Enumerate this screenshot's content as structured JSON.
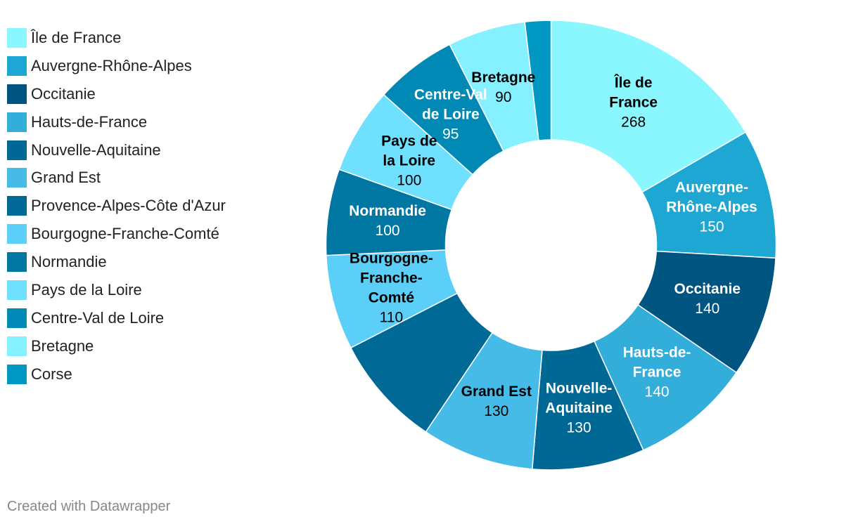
{
  "chart_data": {
    "type": "pie",
    "categories": [
      "Île de France",
      "Auvergne-Rhône-Alpes",
      "Occitanie",
      "Hauts-de-France",
      "Nouvelle-Aquitaine",
      "Grand Est",
      "Provence-Alpes-Côte d'Azur",
      "Bourgogne-Franche-Comté",
      "Normandie",
      "Pays de la Loire",
      "Centre-Val de Loire",
      "Bretagne",
      "Corse"
    ],
    "values": [
      268,
      150,
      140,
      140,
      130,
      130,
      130,
      110,
      100,
      100,
      95,
      90,
      30
    ],
    "display_values": [
      "268",
      "150",
      "140",
      "140",
      "130",
      "130",
      "",
      "110",
      "100",
      "100",
      "95",
      "90",
      ""
    ],
    "slice_labels": [
      [
        "Île de",
        "France"
      ],
      [
        "Auvergne-",
        "Rhône-Alpes"
      ],
      [
        "Occitanie"
      ],
      [
        "Hauts-de-",
        "France"
      ],
      [
        "Nouvelle-",
        "Aquitaine"
      ],
      [
        "Grand Est"
      ],
      [],
      [
        "Bourgogne-",
        "Franche-",
        "Comté"
      ],
      [
        "Normandie"
      ],
      [
        "Pays de",
        "la Loire"
      ],
      [
        "Centre-Val",
        "de Loire"
      ],
      [
        "Bretagne"
      ],
      []
    ],
    "colors": [
      "#8af7ff",
      "#1ea7d2",
      "#005480",
      "#33add9",
      "#006894",
      "#47bbe7",
      "#006995",
      "#5bcff8",
      "#0077a3",
      "#70e0ff",
      "#0089b4",
      "#85f0ff",
      "#0097c2"
    ],
    "label_colors": [
      "#000000",
      "#ffffff",
      "#ffffff",
      "#ffffff",
      "#ffffff",
      "#000000",
      "#ffffff",
      "#000000",
      "#ffffff",
      "#000000",
      "#ffffff",
      "#000000",
      "#ffffff"
    ],
    "legend_placement": "left",
    "donut": true
  },
  "footer": {
    "credit": "Created with Datawrapper"
  }
}
